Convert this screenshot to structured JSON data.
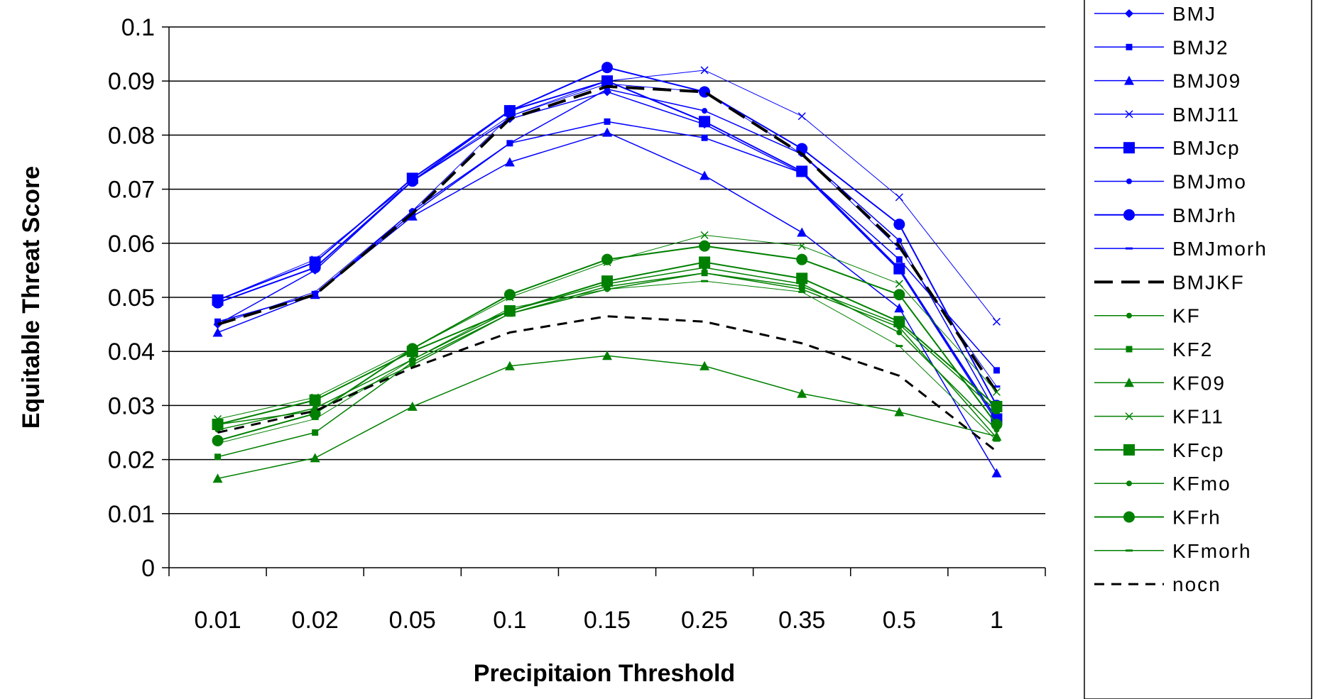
{
  "chart_data": {
    "type": "line",
    "title": "",
    "xlabel": "Precipitaion Threshold",
    "ylabel": "Equitable Threat Score",
    "ylim": [
      0,
      0.1
    ],
    "yticks": [
      "0",
      "0.01",
      "0.02",
      "0.03",
      "0.04",
      "0.05",
      "0.06",
      "0.07",
      "0.08",
      "0.09",
      "0.1"
    ],
    "categories": [
      "0.01",
      "0.02",
      "0.05",
      "0.1",
      "0.15",
      "0.25",
      "0.35",
      "0.5",
      "1"
    ],
    "grid": "horizontal",
    "legend_position": "right",
    "colors": {
      "bmj": "#0000ff",
      "kf": "#008000",
      "black": "#000000"
    },
    "series": [
      {
        "name": "BMJ",
        "marker": "diamond",
        "color": "#0000ff",
        "width": 1.5,
        "dash": "",
        "values": [
          0.045,
          0.055,
          0.0715,
          0.083,
          0.088,
          0.082,
          0.073,
          0.055,
          0.027
        ]
      },
      {
        "name": "BMJ2",
        "marker": "square-small",
        "color": "#0000ff",
        "width": 1.5,
        "dash": "",
        "values": [
          0.0455,
          0.0505,
          0.0655,
          0.0785,
          0.0825,
          0.0795,
          0.073,
          0.057,
          0.0365
        ]
      },
      {
        "name": "BMJ09",
        "marker": "triangle",
        "color": "#0000ff",
        "width": 1.5,
        "dash": "",
        "values": [
          0.0435,
          0.0505,
          0.065,
          0.075,
          0.0805,
          0.0725,
          0.062,
          0.048,
          0.0175
        ]
      },
      {
        "name": "BMJ11",
        "marker": "x",
        "color": "#0000ff",
        "width": 1,
        "dash": "",
        "values": [
          0.0495,
          0.057,
          0.0715,
          0.0835,
          0.09,
          0.092,
          0.0835,
          0.0685,
          0.0455
        ]
      },
      {
        "name": "BMJcp",
        "marker": "square",
        "color": "#0000ff",
        "width": 2,
        "dash": "",
        "values": [
          0.0495,
          0.0565,
          0.072,
          0.0845,
          0.09,
          0.0825,
          0.0733,
          0.0553,
          0.0275
        ]
      },
      {
        "name": "BMJmo",
        "marker": "dot",
        "color": "#0000ff",
        "width": 1.5,
        "dash": "",
        "values": [
          0.0455,
          0.0505,
          0.066,
          0.0785,
          0.0885,
          0.0845,
          0.0765,
          0.0605,
          0.0285
        ]
      },
      {
        "name": "BMJrh",
        "marker": "circle",
        "color": "#0000ff",
        "width": 2,
        "dash": "",
        "values": [
          0.049,
          0.0555,
          0.0715,
          0.0845,
          0.0925,
          0.088,
          0.0775,
          0.0635,
          0.03
        ]
      },
      {
        "name": "BMJmorh",
        "marker": "dash",
        "color": "#0000ff",
        "width": 1,
        "dash": "",
        "values": [
          0.045,
          0.051,
          0.066,
          0.0835,
          0.0895,
          0.088,
          0.0765,
          0.059,
          0.0335
        ]
      },
      {
        "name": "BMJKF",
        "marker": "dash",
        "color": "#000000",
        "width": 4,
        "dash": "26,12",
        "values": [
          0.045,
          0.0505,
          0.0655,
          0.083,
          0.089,
          0.088,
          0.0765,
          0.0595,
          0.0325
        ]
      },
      {
        "name": "KF",
        "marker": "dot",
        "color": "#008000",
        "width": 1.5,
        "dash": "",
        "values": [
          0.0265,
          0.029,
          0.0375,
          0.047,
          0.0515,
          0.0545,
          0.0515,
          0.0445,
          0.024
        ]
      },
      {
        "name": "KF2",
        "marker": "square-small",
        "color": "#008000",
        "width": 1.5,
        "dash": "",
        "values": [
          0.0205,
          0.025,
          0.038,
          0.047,
          0.052,
          0.0545,
          0.052,
          0.045,
          0.029
        ]
      },
      {
        "name": "KF09",
        "marker": "triangle",
        "color": "#008000",
        "width": 1.5,
        "dash": "",
        "values": [
          0.0165,
          0.0203,
          0.0298,
          0.0373,
          0.0392,
          0.0373,
          0.0322,
          0.0288,
          0.0243
        ]
      },
      {
        "name": "KF11",
        "marker": "x",
        "color": "#008000",
        "width": 1,
        "dash": "",
        "values": [
          0.0275,
          0.0315,
          0.0405,
          0.05,
          0.0565,
          0.0615,
          0.0595,
          0.0525,
          0.0325
        ]
      },
      {
        "name": "KFcp",
        "marker": "square",
        "color": "#008000",
        "width": 2,
        "dash": "",
        "values": [
          0.0265,
          0.031,
          0.04,
          0.0475,
          0.053,
          0.0565,
          0.0535,
          0.0455,
          0.0298
        ]
      },
      {
        "name": "KFmo",
        "marker": "dot",
        "color": "#008000",
        "width": 1.5,
        "dash": "",
        "values": [
          0.0255,
          0.0295,
          0.0385,
          0.0475,
          0.0525,
          0.0555,
          0.0525,
          0.0435,
          0.0255
        ]
      },
      {
        "name": "KFrh",
        "marker": "circle",
        "color": "#008000",
        "width": 2,
        "dash": "",
        "values": [
          0.0235,
          0.0285,
          0.0405,
          0.0505,
          0.057,
          0.0595,
          0.057,
          0.0505,
          0.0265
        ]
      },
      {
        "name": "KFmorh",
        "marker": "dash",
        "color": "#008000",
        "width": 1,
        "dash": "",
        "values": [
          0.023,
          0.0275,
          0.0385,
          0.048,
          0.0515,
          0.053,
          0.051,
          0.041,
          0.0235
        ]
      },
      {
        "name": "nocn",
        "marker": "dash",
        "color": "#000000",
        "width": 3,
        "dash": "14,10",
        "values": [
          0.025,
          0.029,
          0.037,
          0.0435,
          0.0465,
          0.0455,
          0.0415,
          0.0355,
          0.0215
        ]
      }
    ]
  }
}
